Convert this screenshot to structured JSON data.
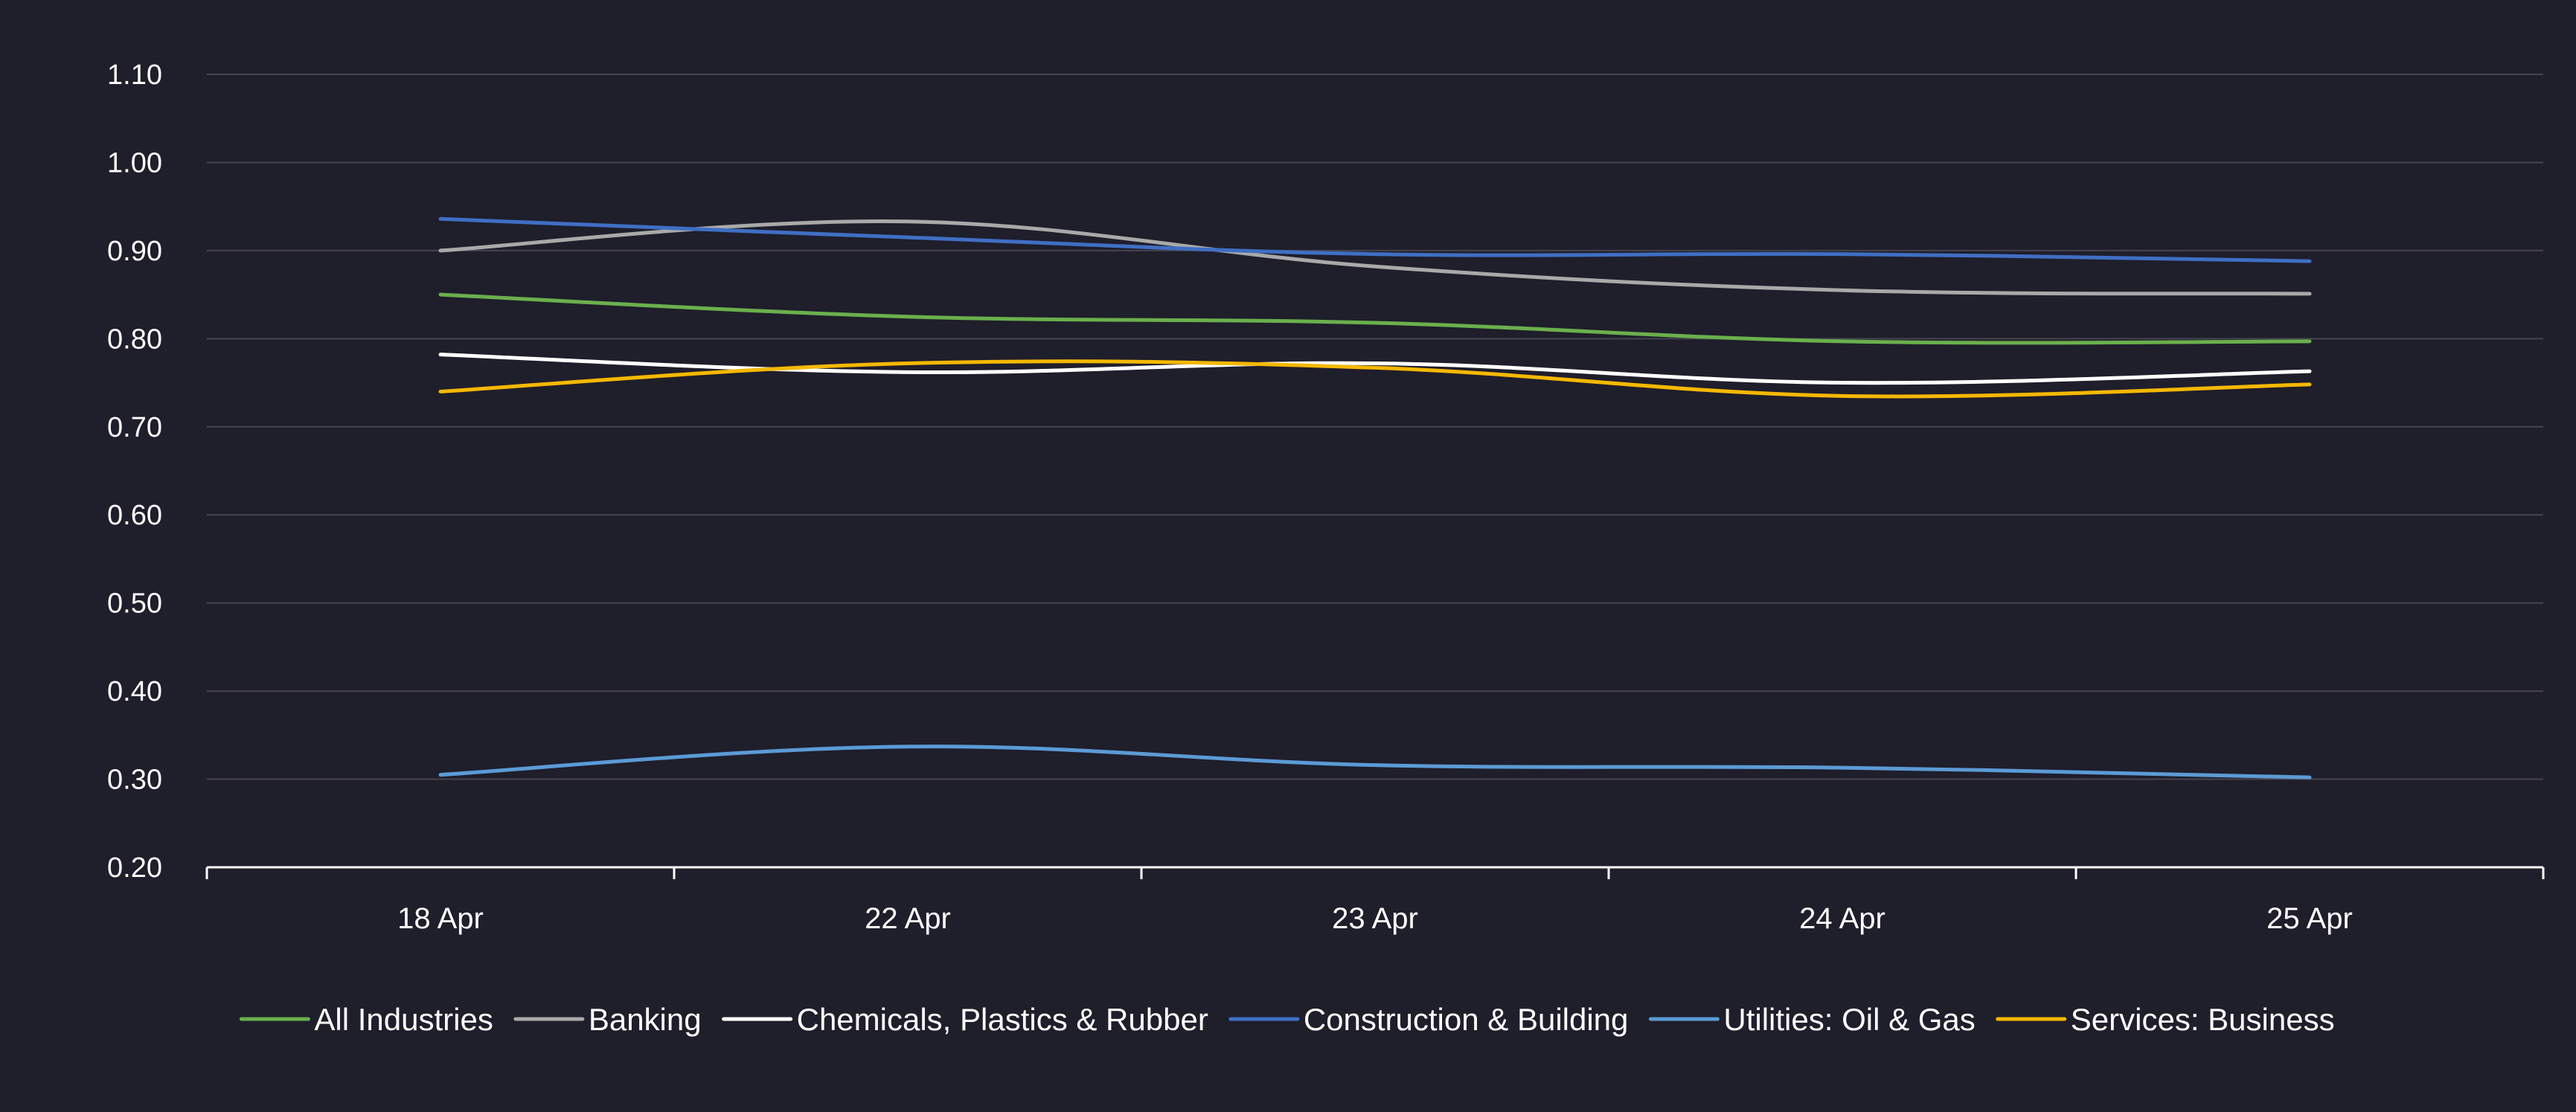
{
  "chart_data": {
    "type": "line",
    "title": "",
    "xlabel": "",
    "ylabel": "",
    "categories": [
      "18 Apr",
      "22 Apr",
      "23 Apr",
      "24 Apr",
      "25 Apr"
    ],
    "ylim": [
      0.2,
      1.1
    ],
    "yticks": [
      "0.20",
      "0.30",
      "0.40",
      "0.50",
      "0.60",
      "0.70",
      "0.80",
      "0.90",
      "1.00",
      "1.10"
    ],
    "grid": true,
    "legend_position": "bottom",
    "background_color": "#1f1e2b",
    "gridline_color": "#45444f",
    "axis_color": "#ffffff",
    "series": [
      {
        "name": "All Industries",
        "color": "#6ab04c",
        "values": [
          0.85,
          0.825,
          0.818,
          0.797,
          0.797
        ]
      },
      {
        "name": "Banking",
        "color": "#a9a9a9",
        "values": [
          0.9,
          0.933,
          0.882,
          0.855,
          0.851
        ]
      },
      {
        "name": "Chemicals, Plastics & Rubber",
        "color": "#ffffff",
        "values": [
          0.782,
          0.762,
          0.772,
          0.75,
          0.763
        ]
      },
      {
        "name": "Construction & Building",
        "color": "#3f6fc4",
        "values": [
          0.936,
          0.915,
          0.896,
          0.896,
          0.888
        ]
      },
      {
        "name": "Utilities: Oil & Gas",
        "color": "#5b9bd5",
        "values": [
          0.305,
          0.337,
          0.316,
          0.313,
          0.302
        ]
      },
      {
        "name": "Services: Business",
        "color": "#f5b800",
        "values": [
          0.74,
          0.772,
          0.767,
          0.735,
          0.748
        ]
      }
    ]
  }
}
